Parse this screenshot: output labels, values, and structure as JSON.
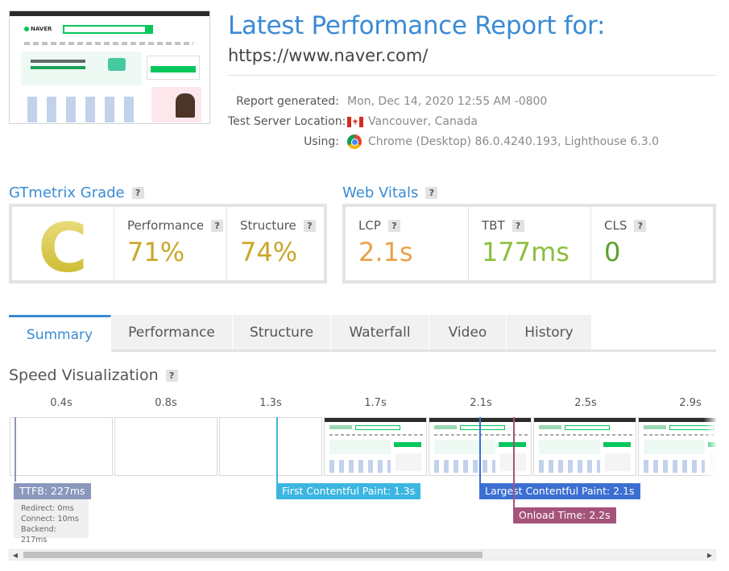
{
  "header": {
    "title": "Latest Performance Report for:",
    "url": "https://www.naver.com/",
    "thumbnail_logo": "NAVER",
    "meta": [
      {
        "label": "Report generated:",
        "value": "Mon, Dec 14, 2020 12:55 AM -0800",
        "icon": ""
      },
      {
        "label": "Test Server Location:",
        "value": "Vancouver, Canada",
        "icon": "canada-flag-icon"
      },
      {
        "label": "Using:",
        "value": "Chrome (Desktop) 86.0.4240.193, Lighthouse 6.3.0",
        "icon": "chrome-icon"
      }
    ]
  },
  "grade": {
    "heading": "GTmetrix Grade",
    "help": "?",
    "letter": "C",
    "metrics": [
      {
        "label": "Performance",
        "value": "71%",
        "color": "#c9a72a"
      },
      {
        "label": "Structure",
        "value": "74%",
        "color": "#c9a72a"
      }
    ]
  },
  "vitals": {
    "heading": "Web Vitals",
    "help": "?",
    "metrics": [
      {
        "label": "LCP",
        "value": "2.1s",
        "color": "#e9a24a"
      },
      {
        "label": "TBT",
        "value": "177ms",
        "color": "#8bbf3f"
      },
      {
        "label": "CLS",
        "value": "0",
        "color": "#5aa02c"
      }
    ]
  },
  "tabs": [
    {
      "label": "Summary",
      "active": true
    },
    {
      "label": "Performance",
      "active": false
    },
    {
      "label": "Structure",
      "active": false
    },
    {
      "label": "Waterfall",
      "active": false
    },
    {
      "label": "Video",
      "active": false
    },
    {
      "label": "History",
      "active": false
    }
  ],
  "speed_visualization": {
    "heading": "Speed Visualization",
    "help": "?",
    "frames": [
      {
        "time": "0.4s",
        "rendered": false
      },
      {
        "time": "0.8s",
        "rendered": false
      },
      {
        "time": "1.3s",
        "rendered": false
      },
      {
        "time": "1.7s",
        "rendered": true
      },
      {
        "time": "2.1s",
        "rendered": true
      },
      {
        "time": "2.5s",
        "rendered": true
      },
      {
        "time": "2.9s",
        "rendered": true
      }
    ],
    "markers": {
      "ttfb": {
        "label": "TTFB: 227ms",
        "color": "#8b97bd"
      },
      "fcp": {
        "label": "First Contentful Paint: 1.3s",
        "color": "#3bb6e0"
      },
      "lcp": {
        "label": "Largest Contentful Paint: 2.1s",
        "color": "#3c6fd1"
      },
      "onload": {
        "label": "Onload Time: 2.2s",
        "color": "#a4547a"
      }
    },
    "ttfb_breakdown": {
      "redirect": "Redirect: 0ms",
      "connect": "Connect: 10ms",
      "backend": "Backend: 217ms"
    }
  },
  "scrollbar": {
    "left_arrow": "◀",
    "right_arrow": "▶"
  }
}
